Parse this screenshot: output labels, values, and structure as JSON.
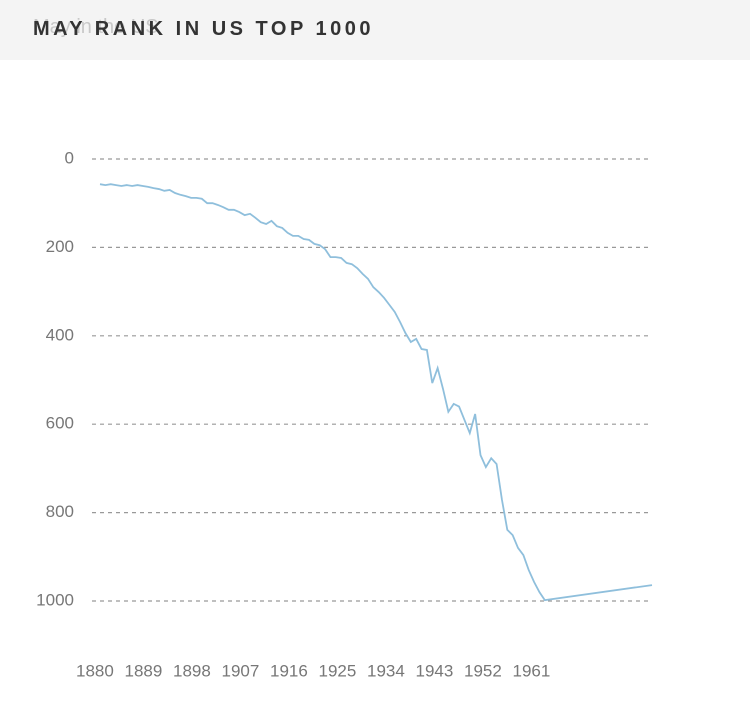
{
  "chart_data": {
    "type": "line",
    "title": "MAY RANK IN US TOP 1000",
    "subtitle": "May in the US",
    "x": [
      1880,
      1881,
      1882,
      1883,
      1884,
      1885,
      1886,
      1887,
      1888,
      1889,
      1890,
      1891,
      1892,
      1893,
      1894,
      1895,
      1896,
      1897,
      1898,
      1899,
      1900,
      1901,
      1902,
      1903,
      1904,
      1905,
      1906,
      1907,
      1908,
      1909,
      1910,
      1911,
      1912,
      1913,
      1914,
      1915,
      1916,
      1917,
      1918,
      1919,
      1920,
      1921,
      1922,
      1923,
      1924,
      1925,
      1926,
      1927,
      1928,
      1929,
      1930,
      1931,
      1932,
      1933,
      1934,
      1935,
      1936,
      1937,
      1938,
      1939,
      1940,
      1941,
      1942,
      1943,
      1944,
      1945,
      1946,
      1947,
      1948,
      1949,
      1950,
      1951,
      1952,
      1953,
      1954,
      1955,
      1956,
      1957,
      1958,
      1959,
      1960,
      1961,
      1962,
      1963,
      1983
    ],
    "series": [
      {
        "name": "May",
        "color": "#8fbfdc",
        "values": [
          57,
          59,
          57,
          59,
          61,
          59,
          61,
          59,
          61,
          63,
          66,
          68,
          72,
          70,
          77,
          81,
          84,
          88,
          88,
          90,
          100,
          100,
          104,
          109,
          115,
          115,
          120,
          127,
          124,
          133,
          143,
          147,
          140,
          152,
          156,
          167,
          174,
          174,
          181,
          183,
          192,
          195,
          204,
          222,
          222,
          224,
          235,
          238,
          247,
          260,
          271,
          290,
          301,
          314,
          330,
          346,
          369,
          394,
          414,
          407,
          430,
          432,
          507,
          473,
          520,
          572,
          554,
          560,
          590,
          620,
          577,
          670,
          697,
          677,
          690,
          771,
          839,
          851,
          880,
          896,
          930,
          957,
          980,
          998,
          964
        ]
      }
    ],
    "xlim": [
      1880,
      1983
    ],
    "xticks": [
      1880,
      1889,
      1898,
      1907,
      1916,
      1925,
      1934,
      1943,
      1952,
      1961
    ],
    "ylim": [
      0,
      1000
    ],
    "y_inverted": true,
    "yticks": [
      0,
      200,
      400,
      600,
      800,
      1000
    ],
    "grid": true
  }
}
